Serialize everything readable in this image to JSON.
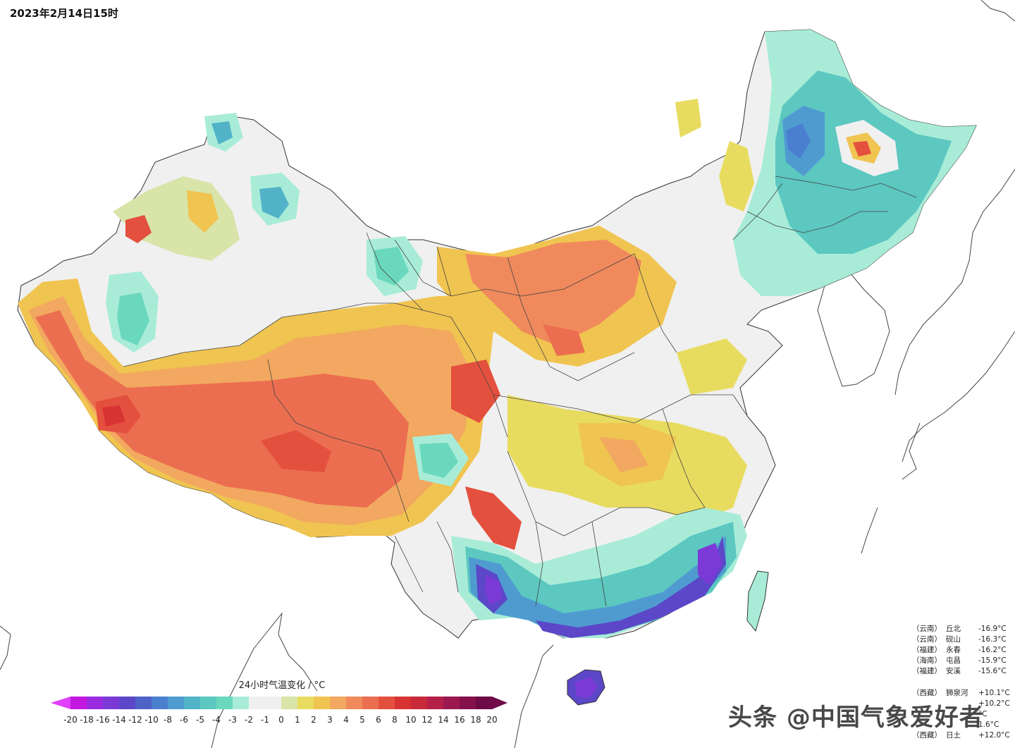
{
  "header": {
    "timestamp": "2023年2月14日15时"
  },
  "legend": {
    "title": "24小时气温变化 / °C",
    "ticks": [
      "-20",
      "-18",
      "-16",
      "-14",
      "-12",
      "-10",
      "-8",
      "-6",
      "-5",
      "-4",
      "-3",
      "-2",
      "-1",
      "0",
      "1",
      "2",
      "3",
      "4",
      "5",
      "6",
      "8",
      "10",
      "12",
      "14",
      "16",
      "18",
      "20"
    ],
    "colors": [
      "#e040fb",
      "#c218e0",
      "#9a2be0",
      "#7b3ad6",
      "#5c47c8",
      "#4f62c8",
      "#4a7fcf",
      "#4f9bd0",
      "#52b3c8",
      "#5cc8c0",
      "#6ad8bc",
      "#a8ecd8",
      "#f0f0f0",
      "#f0f0f0",
      "#d8e4a8",
      "#e8dc60",
      "#f0c450",
      "#f2a860",
      "#f08a5c",
      "#ec6e50",
      "#e4503e",
      "#d83434",
      "#c82a3c",
      "#b42048",
      "#9c1850",
      "#84104c",
      "#6e0a46"
    ]
  },
  "drop_stations": [
    {
      "prov": "（云南）",
      "name": "丘北",
      "value": "-16.9°C"
    },
    {
      "prov": "（云南）",
      "name": "砚山",
      "value": "-16.3°C"
    },
    {
      "prov": "（福建）",
      "name": "永春",
      "value": "-16.2°C"
    },
    {
      "prov": "（海南）",
      "name": "屯昌",
      "value": "-15.9°C"
    },
    {
      "prov": "（福建）",
      "name": "安溪",
      "value": "-15.6°C"
    }
  ],
  "rise_stations": [
    {
      "prov": "（西藏）",
      "name": "狮泉河",
      "value": "+10.1°C"
    },
    {
      "prov": "",
      "name": "",
      "value": "+10.2°C"
    },
    {
      "prov": "",
      "name": "",
      "value": "°C"
    },
    {
      "prov": "",
      "name": "",
      "value": "1.6°C"
    },
    {
      "prov": "（西藏）",
      "name": "日土",
      "value": "+12.0°C"
    }
  ],
  "watermark": "头条 @中国气象爱好者",
  "map": {
    "colors": {
      "white": "#f0f0f0",
      "yellow_green": "#d8e4a8",
      "yellow": "#e8dc60",
      "light_orange": "#f0c450",
      "orange": "#f2a860",
      "salmon": "#f08a5c",
      "red_orange": "#ec6e50",
      "red": "#e4503e",
      "deep_red": "#d83434",
      "mint": "#a8ecd8",
      "aqua": "#6ad8bc",
      "teal": "#5cc8c0",
      "cyan_blue": "#52b3c8",
      "blue": "#4a7fcf",
      "indigo": "#5c47c8",
      "purple": "#7b3ad6",
      "border": "#333333"
    }
  }
}
